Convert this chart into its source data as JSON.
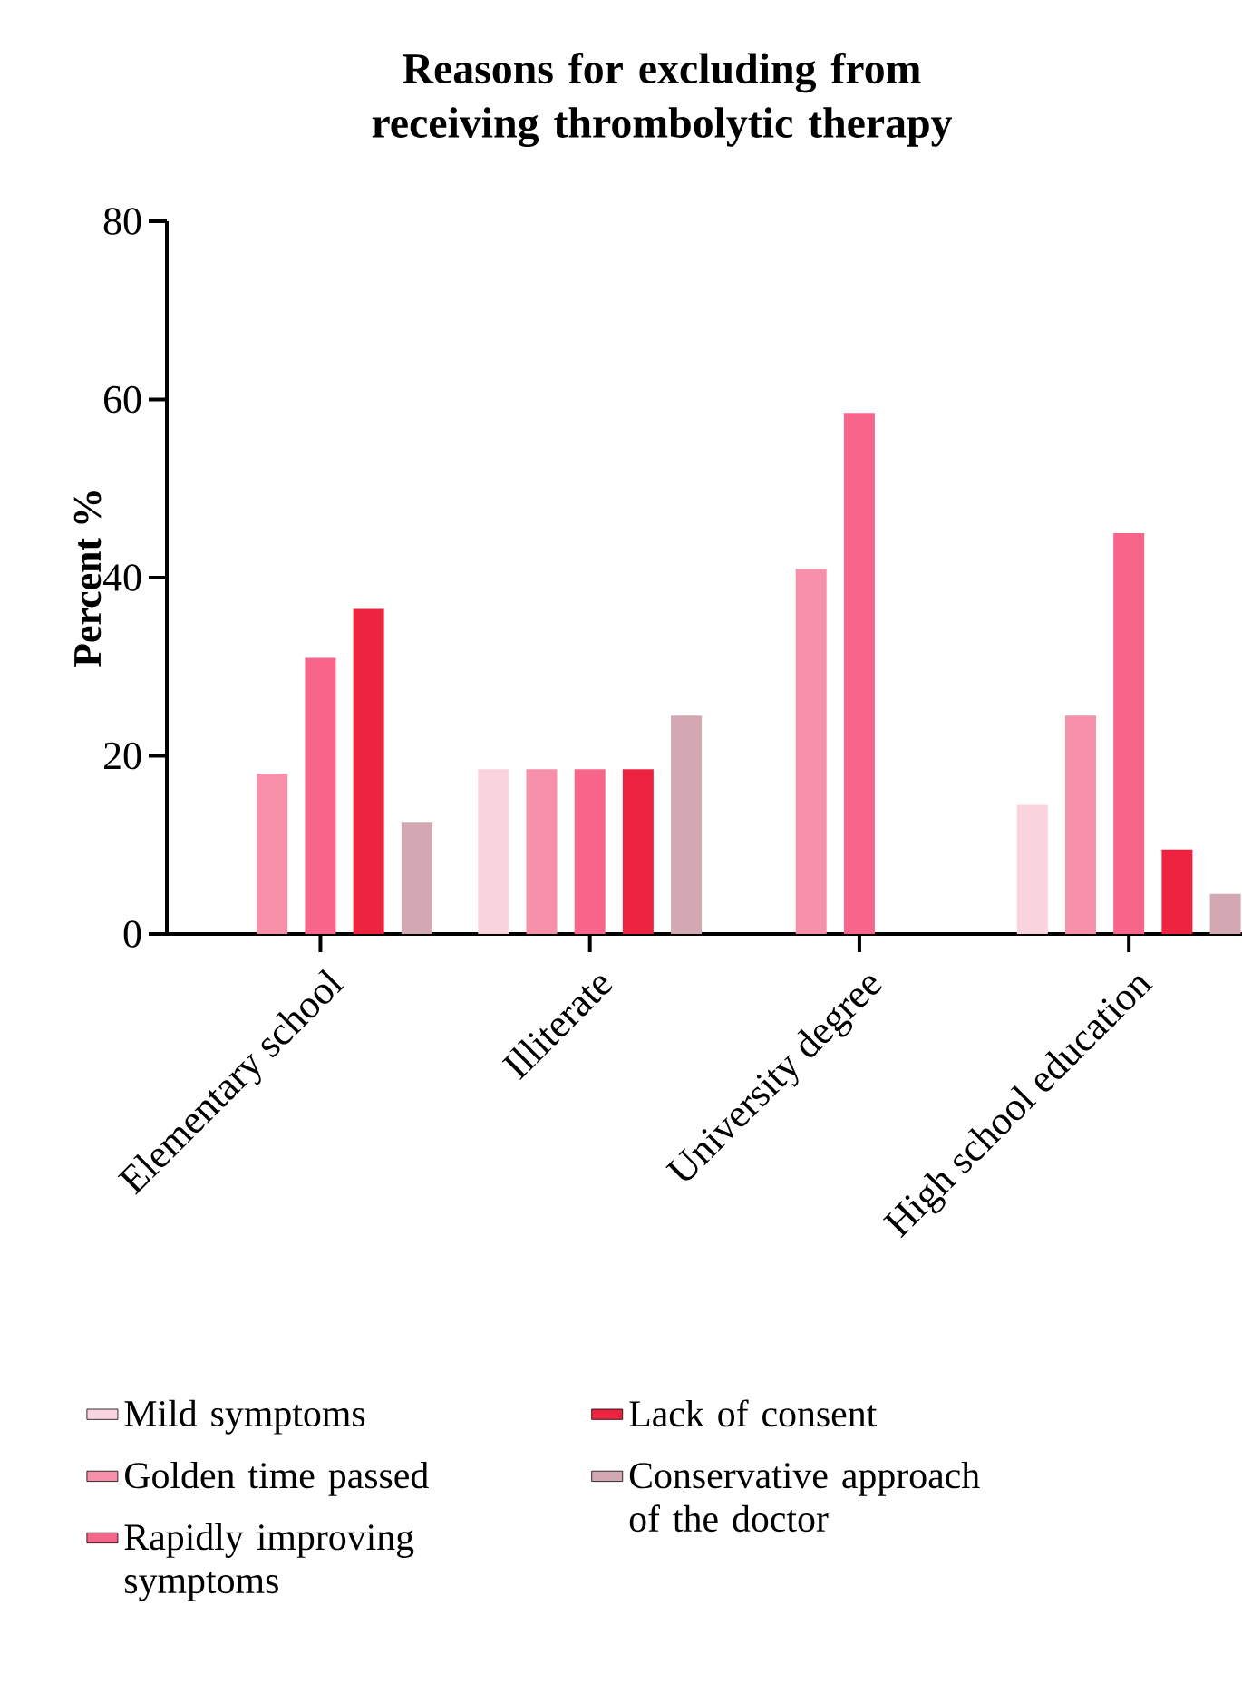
{
  "chart_data": {
    "type": "bar",
    "title": "Reasons for excluding from receiving thrombolytic therapy",
    "ylabel": "Percent %",
    "categories": [
      "Elementary school",
      "Illiterate",
      "University degree",
      "High school education"
    ],
    "series": [
      {
        "name": "Mild symptoms",
        "color": "#f9d3de",
        "values": [
          0,
          18.5,
          0,
          14.5
        ]
      },
      {
        "name": "Golden time passed",
        "color": "#f68fa8",
        "values": [
          18,
          18.5,
          41,
          24.5
        ]
      },
      {
        "name": "Rapidly improving symptoms",
        "color": "#f7658b",
        "values": [
          31,
          18.5,
          58.5,
          45
        ]
      },
      {
        "name": "Lack of consent",
        "color": "#ee2340",
        "values": [
          36.5,
          18.5,
          0,
          9.5
        ]
      },
      {
        "name": "Conservative approach of the doctor",
        "color": "#d4a8b3",
        "values": [
          12.5,
          24.5,
          0,
          4.5
        ]
      }
    ],
    "ylim": [
      0,
      80
    ],
    "yticks": [
      0,
      20,
      40,
      60,
      80
    ],
    "grid": false,
    "legend": "bottom"
  }
}
